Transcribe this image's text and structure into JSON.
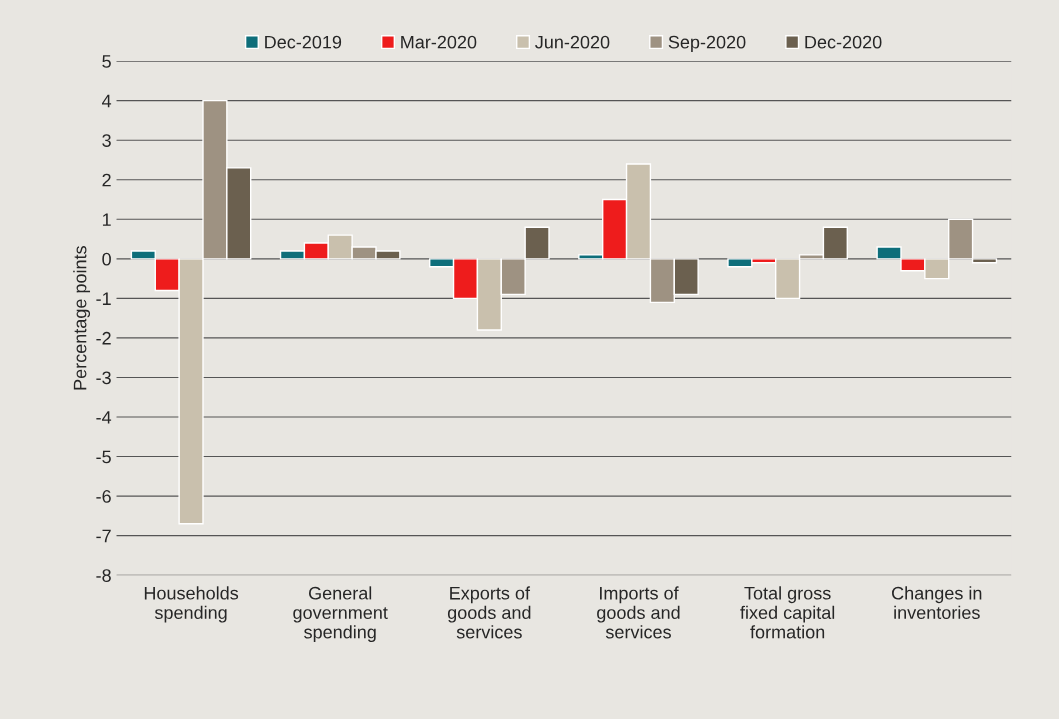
{
  "chart_data": {
    "type": "bar",
    "ylabel": "Percentage points",
    "categories": [
      "Households\nspending",
      "General\ngovernment\nspending",
      "Exports of\ngoods and\nservices",
      "Imports of\ngoods and\nservices",
      "Total gross\nfixed capital\nformation",
      "Changes in\ninventories"
    ],
    "series": [
      {
        "name": "Dec-2019",
        "color": "#0e6e7a",
        "values": [
          0.2,
          0.2,
          -0.2,
          0.1,
          -0.2,
          0.3
        ]
      },
      {
        "name": "Mar-2020",
        "color": "#ee1c1c",
        "values": [
          -0.8,
          0.4,
          -1.0,
          1.5,
          -0.1,
          -0.3
        ]
      },
      {
        "name": "Jun-2020",
        "color": "#c9c0ad",
        "values": [
          -6.7,
          0.6,
          -1.8,
          2.4,
          -1.0,
          -0.5
        ]
      },
      {
        "name": "Sep-2020",
        "color": "#9e9282",
        "values": [
          4.0,
          0.3,
          -0.9,
          -1.1,
          0.1,
          1.0
        ]
      },
      {
        "name": "Dec-2020",
        "color": "#6b604f",
        "values": [
          2.3,
          0.2,
          0.8,
          -0.9,
          0.8,
          -0.1
        ]
      }
    ],
    "ylim": [
      -8,
      5
    ],
    "yticks": [
      -8,
      -7,
      -6,
      -5,
      -4,
      -3,
      -2,
      -1,
      0,
      1,
      2,
      3,
      4,
      5
    ],
    "grid": "y",
    "legend": "top"
  }
}
